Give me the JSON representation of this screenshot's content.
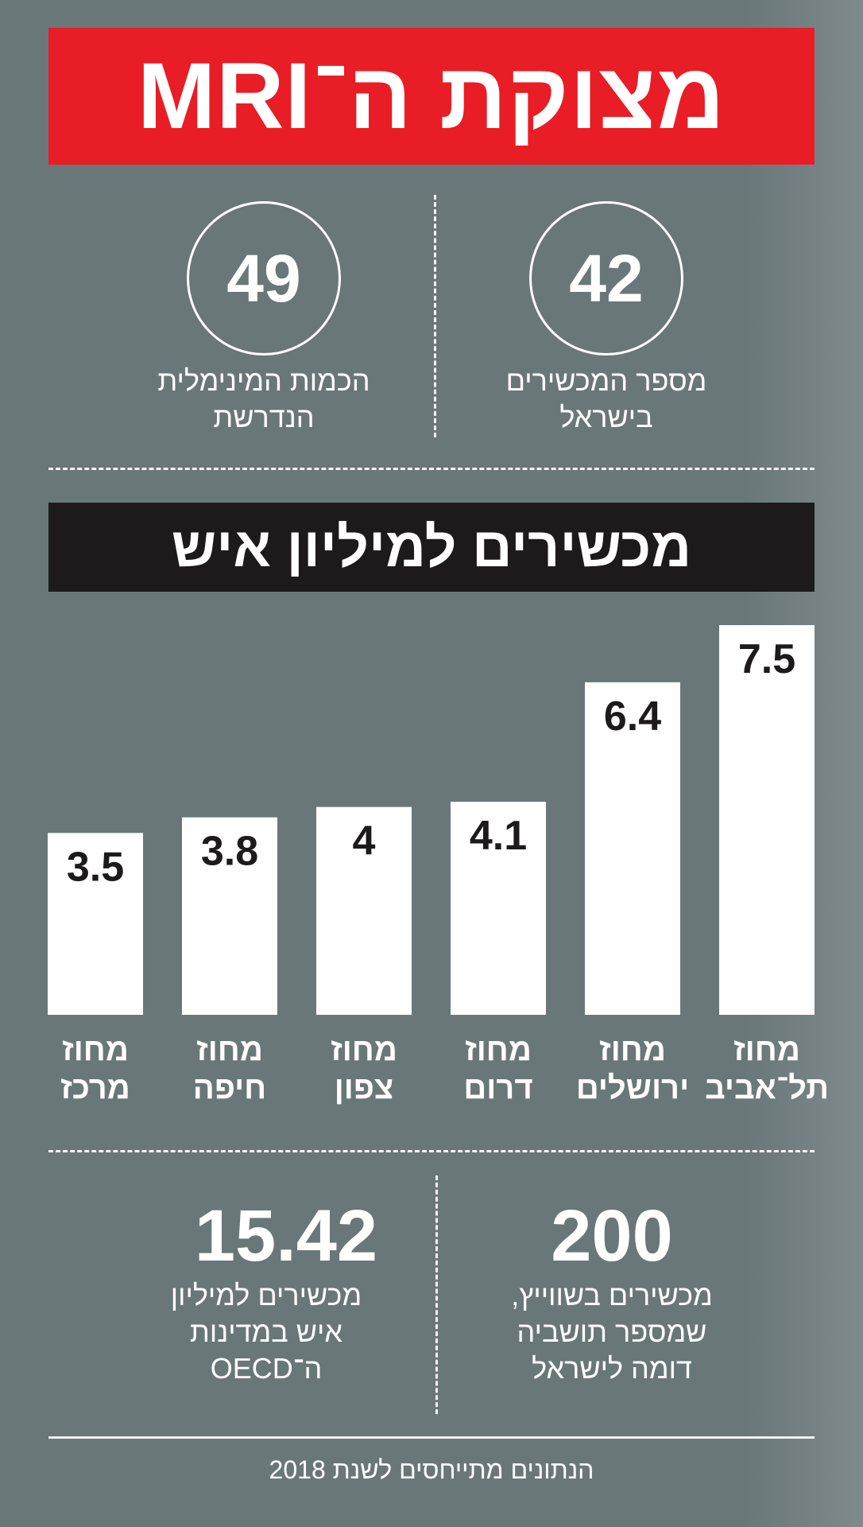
{
  "title": "מצוקת ה־MRI",
  "stats": [
    {
      "value": "42",
      "label": "מספר המכשירים\nבישראל"
    },
    {
      "value": "49",
      "label": "הכמות המינימלית\nהנדרשת"
    }
  ],
  "chart_data": {
    "type": "bar",
    "title": "מכשירים למיליון איש",
    "categories": [
      "מחוז\nתל־אביב",
      "מחוז\nירושלים",
      "מחוז\nדרום",
      "מחוז\nצפון",
      "מחוז\nחיפה",
      "מחוז\nמרכז"
    ],
    "values": [
      7.5,
      6.4,
      4.1,
      4,
      3.8,
      3.5
    ],
    "value_labels": [
      "7.5",
      "6.4",
      "4.1",
      "4",
      "3.8",
      "3.5"
    ],
    "bar_color": "#ffffff",
    "label_color": "#1c1a1a",
    "category_order": "right-to-left"
  },
  "bottom": [
    {
      "value": "200",
      "label": "מכשירים בשווייץ,\nשמספר תושביה\nדומה לישראל"
    },
    {
      "value": "15.42",
      "label": "מכשירים למיליון\nאיש במדינות\nה־OECD"
    }
  ],
  "footer": "הנתונים מתייחסים לשנת 2018",
  "colors": {
    "background": "#6a7779",
    "title_bar": "#e81d25",
    "section_bar": "#1c1a1a",
    "text": "#ffffff"
  }
}
